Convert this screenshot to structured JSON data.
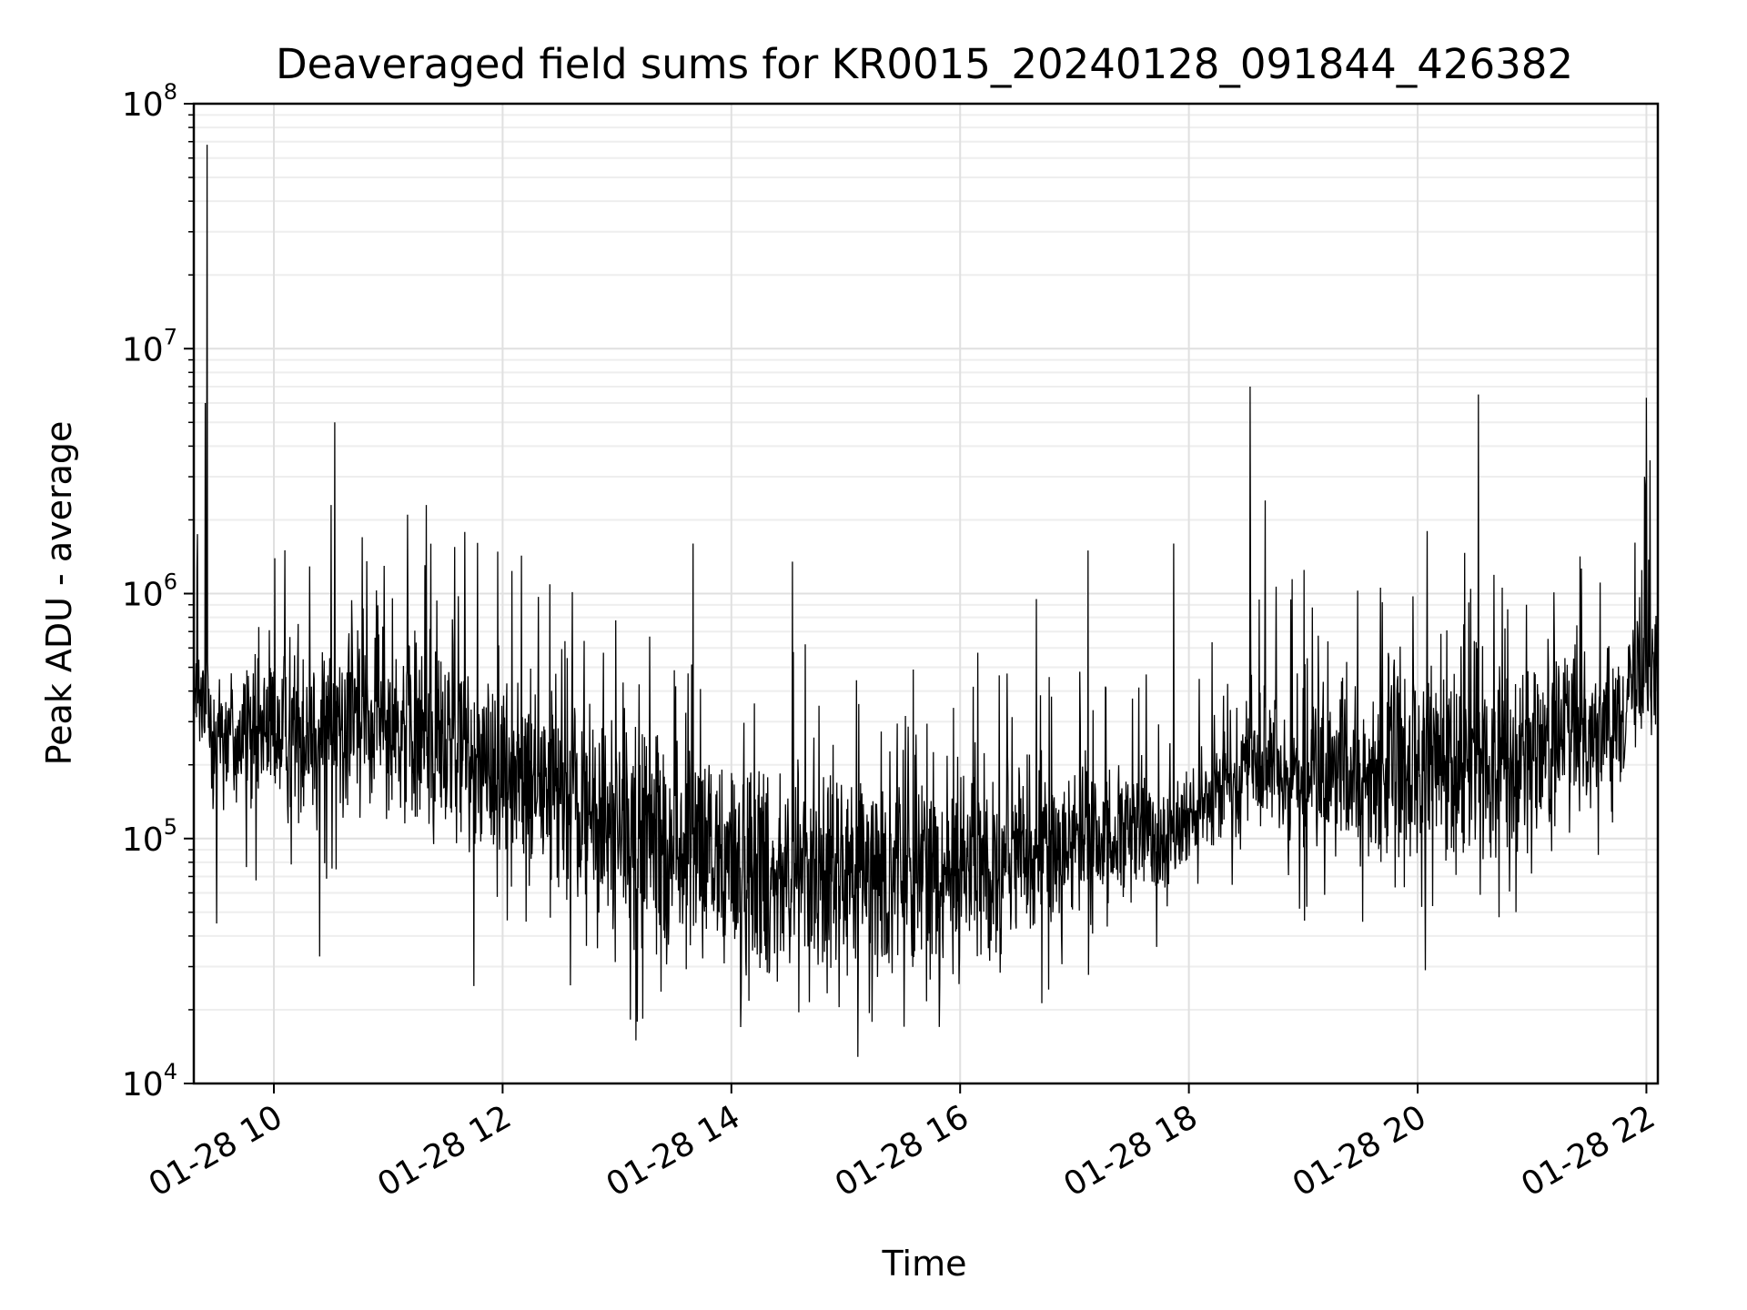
{
  "chart_data": {
    "type": "line",
    "title": "Deaveraged field sums for KR0015_20240128_091844_426382",
    "xlabel": "Time",
    "ylabel": "Peak ADU - average",
    "y_scale": "log",
    "ylim": [
      10000,
      100000000
    ],
    "xlim": [
      "2024-01-28T09:18",
      "2024-01-28T22:06"
    ],
    "grid": "on (major and minor)",
    "line_color": "#000000",
    "x_ticks": [
      {
        "label": "01-28 10",
        "time": "2024-01-28T10:00"
      },
      {
        "label": "01-28 12",
        "time": "2024-01-28T12:00"
      },
      {
        "label": "01-28 14",
        "time": "2024-01-28T14:00"
      },
      {
        "label": "01-28 16",
        "time": "2024-01-28T16:00"
      },
      {
        "label": "01-28 18",
        "time": "2024-01-28T18:00"
      },
      {
        "label": "01-28 20",
        "time": "2024-01-28T20:00"
      },
      {
        "label": "01-28 22",
        "time": "2024-01-28T22:00"
      }
    ],
    "y_ticks": [
      {
        "base": "10",
        "exp": "4",
        "value": 10000
      },
      {
        "base": "10",
        "exp": "5",
        "value": 100000
      },
      {
        "base": "10",
        "exp": "6",
        "value": 1000000
      },
      {
        "base": "10",
        "exp": "7",
        "value": 10000000
      },
      {
        "base": "10",
        "exp": "8",
        "value": 100000000
      }
    ],
    "envelope": [
      {
        "time": "2024-01-28T09:18",
        "low": 150000,
        "high": 800000
      },
      {
        "time": "2024-01-28T09:40",
        "low": 110000,
        "high": 600000
      },
      {
        "time": "2024-01-28T10:00",
        "low": 110000,
        "high": 700000
      },
      {
        "time": "2024-01-28T11:00",
        "low": 100000,
        "high": 900000
      },
      {
        "time": "2024-01-28T12:00",
        "low": 65000,
        "high": 600000
      },
      {
        "time": "2024-01-28T12:40",
        "low": 40000,
        "high": 450000
      },
      {
        "time": "2024-01-28T13:20",
        "low": 25000,
        "high": 350000
      },
      {
        "time": "2024-01-28T14:00",
        "low": 22000,
        "high": 280000
      },
      {
        "time": "2024-01-28T15:00",
        "low": 22000,
        "high": 220000
      },
      {
        "time": "2024-01-28T16:00",
        "low": 25000,
        "high": 230000
      },
      {
        "time": "2024-01-28T17:00",
        "low": 40000,
        "high": 220000
      },
      {
        "time": "2024-01-28T18:00",
        "low": 60000,
        "high": 200000
      },
      {
        "time": "2024-01-28T18:30",
        "low": 110000,
        "high": 400000
      },
      {
        "time": "2024-01-28T19:00",
        "low": 65000,
        "high": 450000
      },
      {
        "time": "2024-01-28T20:00",
        "low": 60000,
        "high": 600000
      },
      {
        "time": "2024-01-28T21:00",
        "low": 80000,
        "high": 700000
      },
      {
        "time": "2024-01-28T21:40",
        "low": 150000,
        "high": 650000
      },
      {
        "time": "2024-01-28T22:06",
        "low": 250000,
        "high": 1200000
      }
    ],
    "spikes": [
      {
        "time": "2024-01-28T09:25",
        "value": 68000000
      },
      {
        "time": "2024-01-28T09:24",
        "value": 6000000
      },
      {
        "time": "2024-01-28T10:32",
        "value": 5000000
      },
      {
        "time": "2024-01-28T10:30",
        "value": 2300000
      },
      {
        "time": "2024-01-28T11:20",
        "value": 2300000
      },
      {
        "time": "2024-01-28T11:10",
        "value": 2100000
      },
      {
        "time": "2024-01-28T13:40",
        "value": 1600000
      },
      {
        "time": "2024-01-28T14:32",
        "value": 1350000
      },
      {
        "time": "2024-01-28T16:40",
        "value": 950000
      },
      {
        "time": "2024-01-28T17:07",
        "value": 1500000
      },
      {
        "time": "2024-01-28T17:52",
        "value": 1600000
      },
      {
        "time": "2024-01-28T18:32",
        "value": 7000000
      },
      {
        "time": "2024-01-28T18:40",
        "value": 2400000
      },
      {
        "time": "2024-01-28T20:32",
        "value": 6500000
      },
      {
        "time": "2024-01-28T20:05",
        "value": 1800000
      },
      {
        "time": "2024-01-28T22:00",
        "value": 6300000
      },
      {
        "time": "2024-01-28T22:02",
        "value": 3500000
      },
      {
        "time": "2024-01-28T21:59",
        "value": 3000000
      }
    ],
    "dips": [
      {
        "time": "2024-01-28T09:30",
        "value": 45000
      },
      {
        "time": "2024-01-28T10:24",
        "value": 33000
      },
      {
        "time": "2024-01-28T11:45",
        "value": 25000
      },
      {
        "time": "2024-01-28T13:10",
        "value": 15000
      },
      {
        "time": "2024-01-28T14:05",
        "value": 17000
      },
      {
        "time": "2024-01-28T20:04",
        "value": 29000
      }
    ]
  }
}
